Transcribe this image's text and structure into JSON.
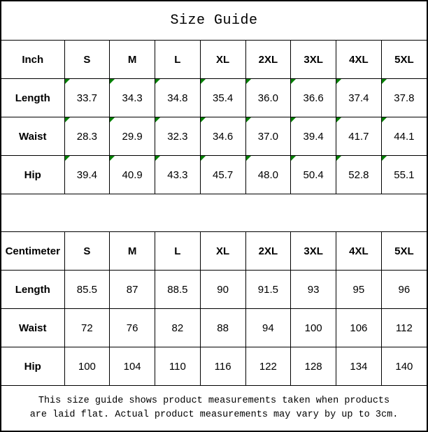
{
  "title": "Size Guide",
  "colors": {
    "background": "#ffffff",
    "border": "#000000",
    "text": "#000000",
    "flag_green": "#008000"
  },
  "footer": {
    "line1": "This size guide shows product measurements taken when products",
    "line2": "are laid flat. Actual product measurements may vary by up to 3cm."
  },
  "chart_data": [
    {
      "type": "table",
      "unit": "Inch",
      "flagged": true,
      "columns": [
        "Inch",
        "S",
        "M",
        "L",
        "XL",
        "2XL",
        "3XL",
        "4XL",
        "5XL"
      ],
      "rows": [
        {
          "label": "Length",
          "values": [
            "33.7",
            "34.3",
            "34.8",
            "35.4",
            "36.0",
            "36.6",
            "37.4",
            "37.8"
          ]
        },
        {
          "label": "Waist",
          "values": [
            "28.3",
            "29.9",
            "32.3",
            "34.6",
            "37.0",
            "39.4",
            "41.7",
            "44.1"
          ]
        },
        {
          "label": "Hip",
          "values": [
            "39.4",
            "40.9",
            "43.3",
            "45.7",
            "48.0",
            "50.4",
            "52.8",
            "55.1"
          ]
        }
      ]
    },
    {
      "type": "table",
      "unit": "Centimeter",
      "flagged": false,
      "columns": [
        "Centimeter",
        "S",
        "M",
        "L",
        "XL",
        "2XL",
        "3XL",
        "4XL",
        "5XL"
      ],
      "rows": [
        {
          "label": "Length",
          "values": [
            "85.5",
            "87",
            "88.5",
            "90",
            "91.5",
            "93",
            "95",
            "96"
          ]
        },
        {
          "label": "Waist",
          "values": [
            "72",
            "76",
            "82",
            "88",
            "94",
            "100",
            "106",
            "112"
          ]
        },
        {
          "label": "Hip",
          "values": [
            "100",
            "104",
            "110",
            "116",
            "122",
            "128",
            "134",
            "140"
          ]
        }
      ]
    }
  ]
}
